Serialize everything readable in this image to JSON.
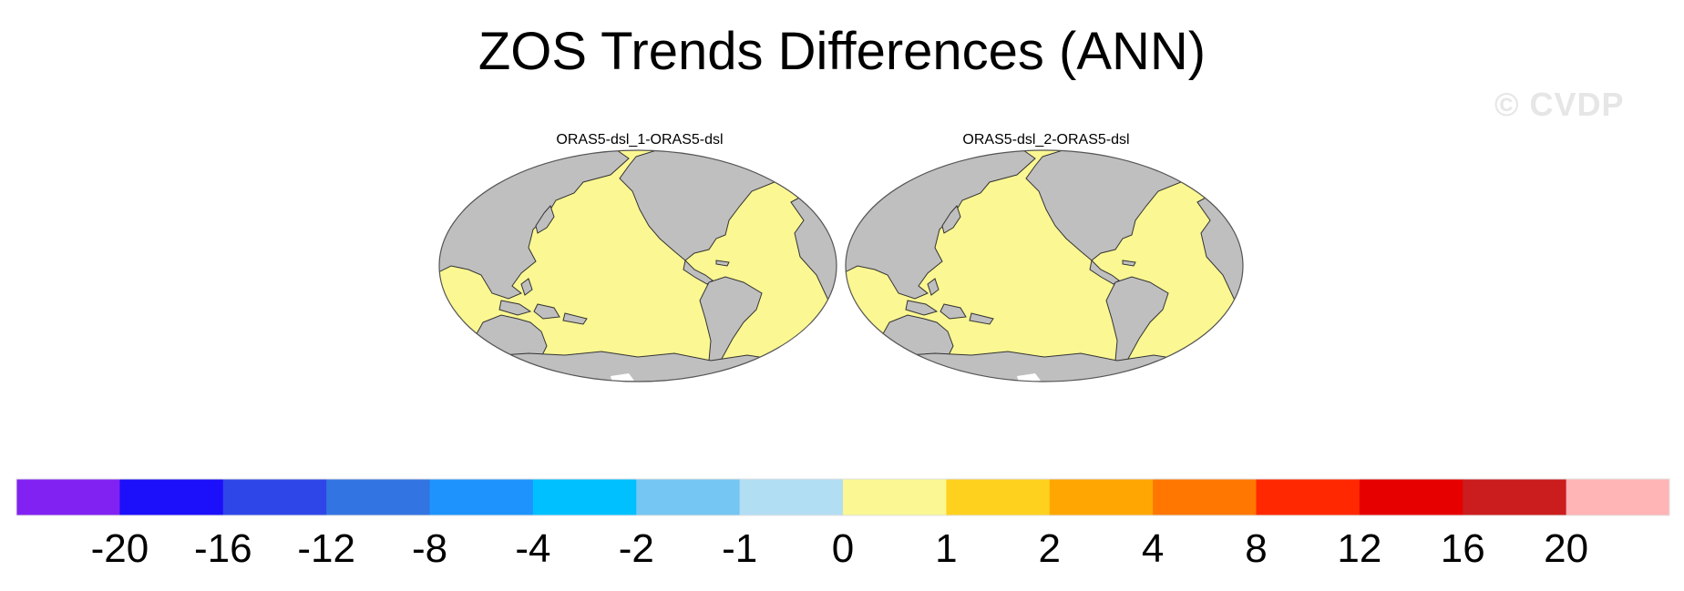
{
  "title": "ZOS Trends Differences (ANN)",
  "watermark": "© CVDP",
  "panels": [
    {
      "title": "ORAS5-dsl_1-ORAS5-dsl"
    },
    {
      "title": "ORAS5-dsl_2-ORAS5-dsl"
    }
  ],
  "colors": {
    "ocean": "#fbf792",
    "land": "#bfbfbf",
    "coast": "#333333"
  },
  "colorbar": {
    "colors": [
      "#8122f2",
      "#1c0ffa",
      "#2e46e8",
      "#3274e2",
      "#1f93fd",
      "#00c0ff",
      "#75c6f2",
      "#b2def3",
      "#fbf792",
      "#ffd11f",
      "#ffa602",
      "#ff7700",
      "#ff2800",
      "#e70000",
      "#cb1c1e",
      "#ffb4b5"
    ],
    "labels": [
      "-20",
      "-16",
      "-12",
      "-8",
      "-4",
      "-2",
      "-1",
      "0",
      "1",
      "2",
      "4",
      "8",
      "12",
      "16",
      "20"
    ]
  }
}
